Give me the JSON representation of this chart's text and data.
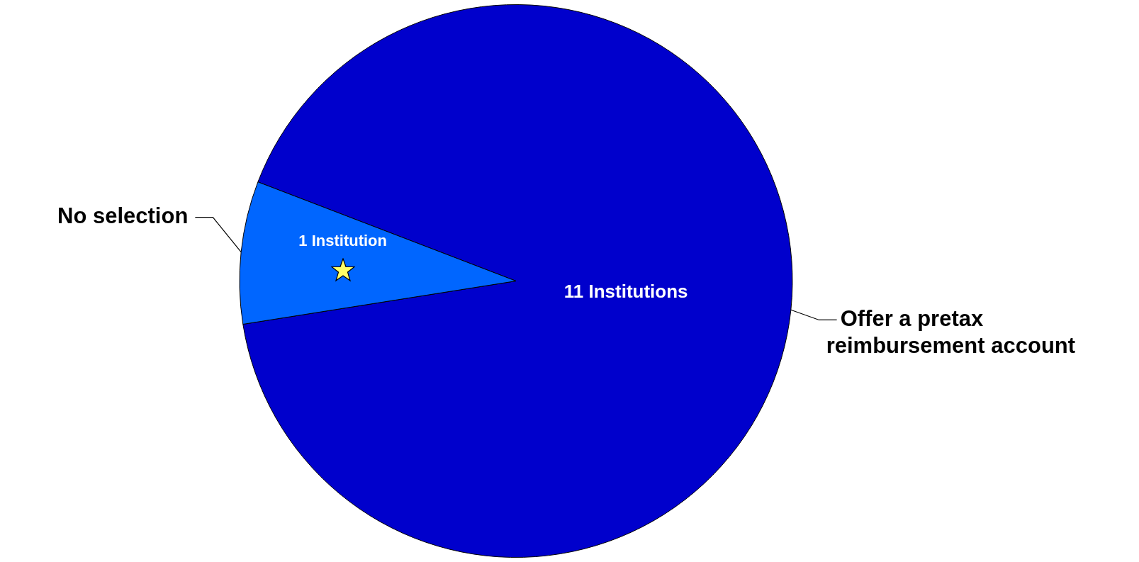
{
  "chart_data": {
    "type": "pie",
    "categories": [
      "Offer a pretax reimbursement account",
      "No selection"
    ],
    "values": [
      11,
      1
    ],
    "colors": [
      "#0000cc",
      "#0066ff"
    ],
    "value_labels": [
      "11 Institutions",
      "1 Institution"
    ]
  }
}
